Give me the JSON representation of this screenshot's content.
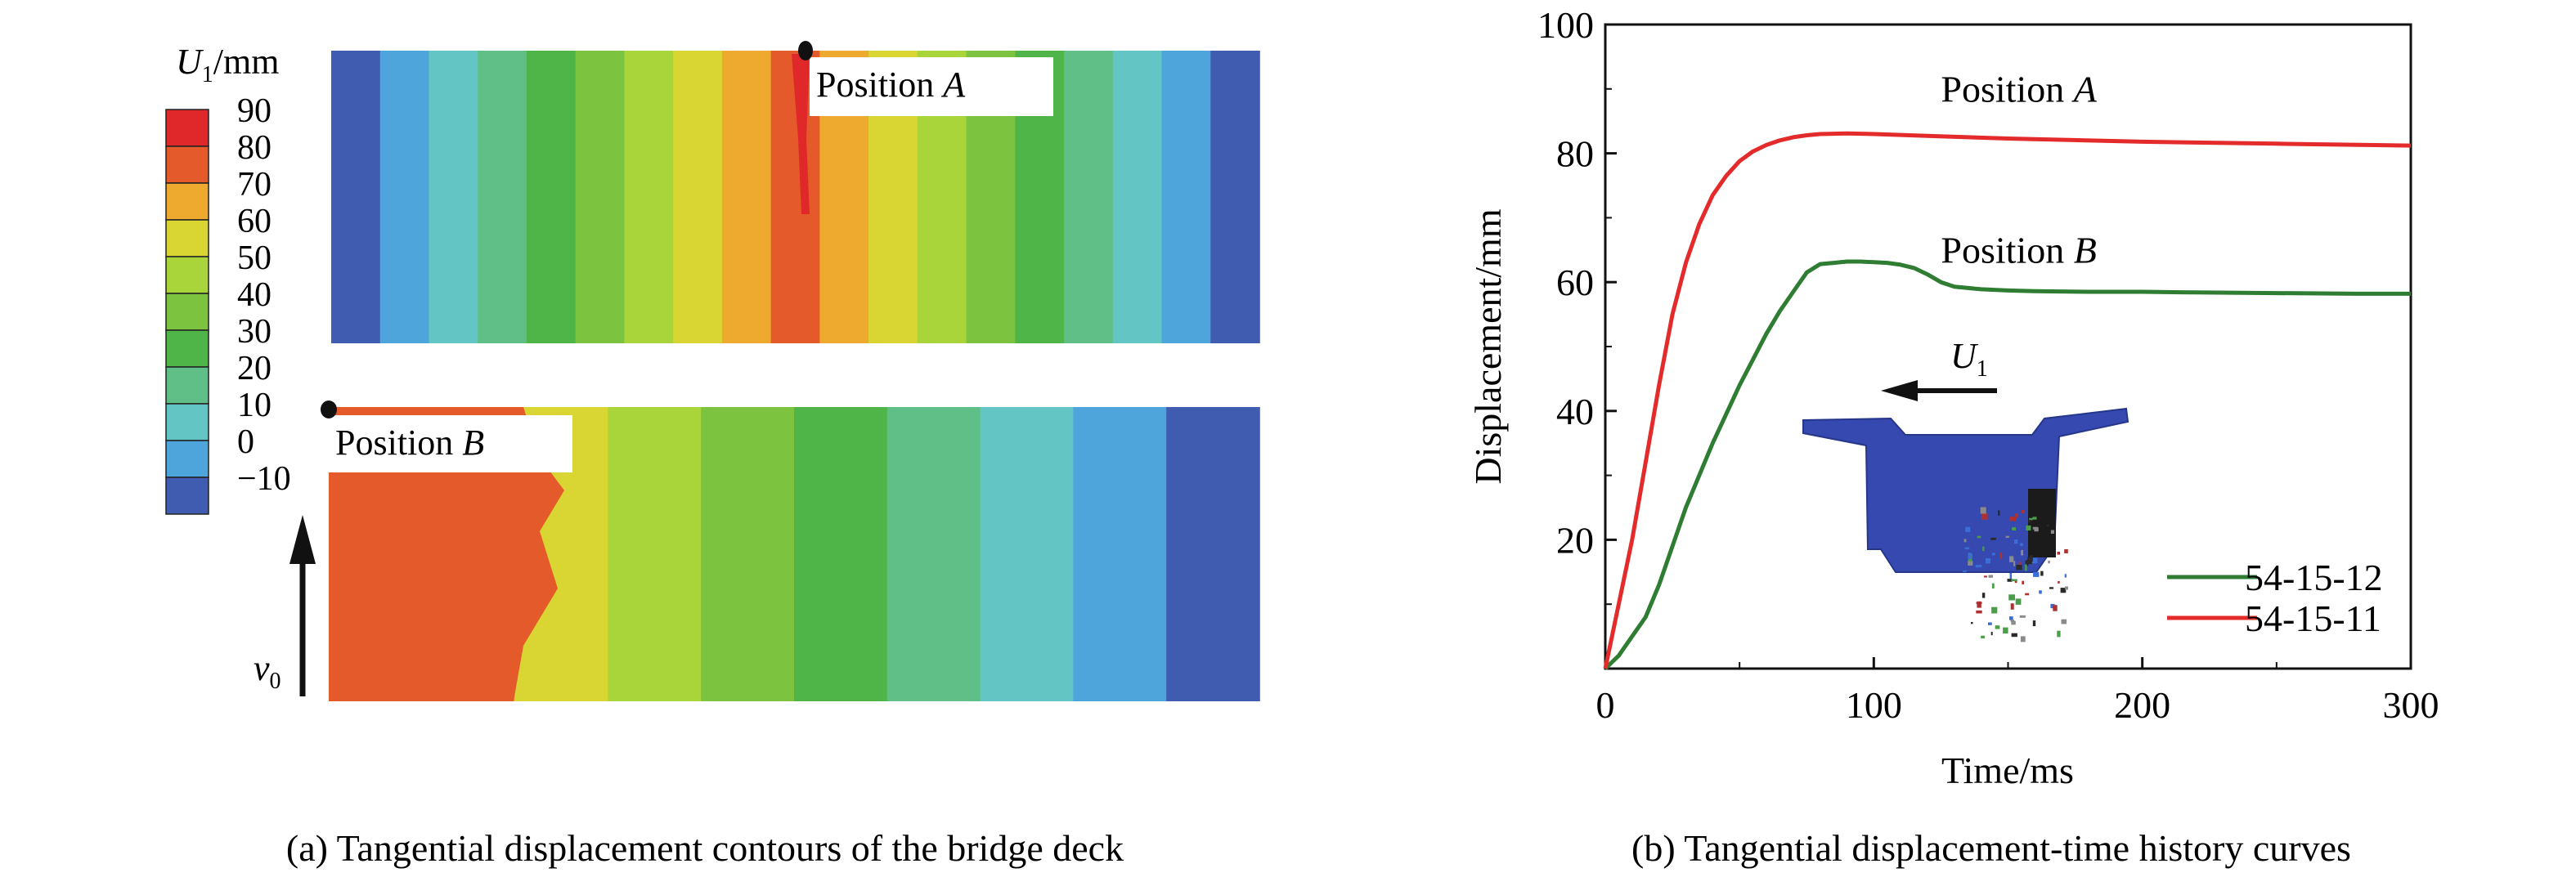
{
  "legend": {
    "title_var": "U",
    "title_sub": "1",
    "title_unit": "/mm",
    "levels": [
      "90",
      "80",
      "70",
      "60",
      "50",
      "40",
      "30",
      "20",
      "10",
      "0",
      "−10"
    ],
    "colors": [
      "#e0282a",
      "#e45a2a",
      "#eeaa2e",
      "#d9d633",
      "#a9d43a",
      "#7cc43f",
      "#4fb548",
      "#5fbf86",
      "#64c6c4",
      "#4ea5dc",
      "#3f5cb0"
    ]
  },
  "contour_top": {
    "band_colors": [
      "#3f5cb0",
      "#4ea5dc",
      "#64c6c4",
      "#5fbf86",
      "#4fb548",
      "#7cc43f",
      "#a9d43a",
      "#d9d633",
      "#eeaa2e",
      "#e45a2a",
      "#eeaa2e",
      "#d9d633",
      "#a9d43a",
      "#7cc43f",
      "#4fb548",
      "#5fbf86",
      "#64c6c4",
      "#4ea5dc",
      "#3f5cb0"
    ],
    "marker_text": "Position ",
    "marker_var": "A"
  },
  "contour_bottom": {
    "band_colors": [
      "#e45a2a",
      "#eeaa2e",
      "#d9d633",
      "#a9d43a",
      "#7cc43f",
      "#4fb548",
      "#5fbf86",
      "#64c6c4",
      "#4ea5dc",
      "#3f5cb0"
    ],
    "marker_text": "Position ",
    "marker_var": "B"
  },
  "velocity_label": {
    "var": "v",
    "sub": "0"
  },
  "captions": {
    "a": "(a) Tangential displacement contours of the bridge deck",
    "b": "(b) Tangential displacement-time history curves"
  },
  "chart_data": {
    "type": "line",
    "xlabel": "Time/ms",
    "ylabel": "Displacement/mm",
    "xlim": [
      0,
      300
    ],
    "ylim": [
      0,
      100
    ],
    "xticks": [
      0,
      100,
      200,
      300
    ],
    "yticks": [
      20,
      40,
      60,
      80,
      100
    ],
    "grid": false,
    "legend_placement": "bottom-right",
    "annotations": [
      {
        "text": "Position ",
        "var": "A",
        "x": 125,
        "y": 88
      },
      {
        "text": "Position ",
        "var": "B",
        "x": 125,
        "y": 63
      }
    ],
    "inset_label": {
      "var": "U",
      "sub": "1"
    },
    "series": [
      {
        "name": "54-15-12",
        "color": "#2e7d32",
        "x": [
          0,
          5,
          10,
          15,
          20,
          25,
          30,
          35,
          40,
          45,
          50,
          55,
          60,
          65,
          70,
          75,
          80,
          85,
          90,
          95,
          100,
          105,
          110,
          115,
          120,
          125,
          130,
          140,
          150,
          160,
          180,
          200,
          220,
          250,
          280,
          300
        ],
        "y": [
          0,
          2,
          5,
          8,
          13,
          19,
          25,
          30,
          35,
          39.5,
          44,
          48,
          52,
          55.5,
          58.5,
          61.5,
          62.8,
          63,
          63.2,
          63.2,
          63.1,
          63,
          62.7,
          62.2,
          61.2,
          60,
          59.3,
          58.9,
          58.7,
          58.6,
          58.5,
          58.5,
          58.4,
          58.3,
          58.2,
          58.2
        ]
      },
      {
        "name": "54-15-11",
        "color": "#e32b2b",
        "x": [
          0,
          5,
          10,
          15,
          20,
          25,
          30,
          35,
          40,
          45,
          50,
          55,
          60,
          65,
          70,
          75,
          80,
          90,
          100,
          120,
          150,
          200,
          250,
          300
        ],
        "y": [
          0,
          10,
          20,
          32,
          44,
          55,
          63,
          69,
          73.5,
          76.5,
          78.8,
          80.3,
          81.3,
          82,
          82.5,
          82.8,
          83,
          83.1,
          83,
          82.7,
          82.3,
          81.8,
          81.5,
          81.2
        ]
      }
    ]
  }
}
